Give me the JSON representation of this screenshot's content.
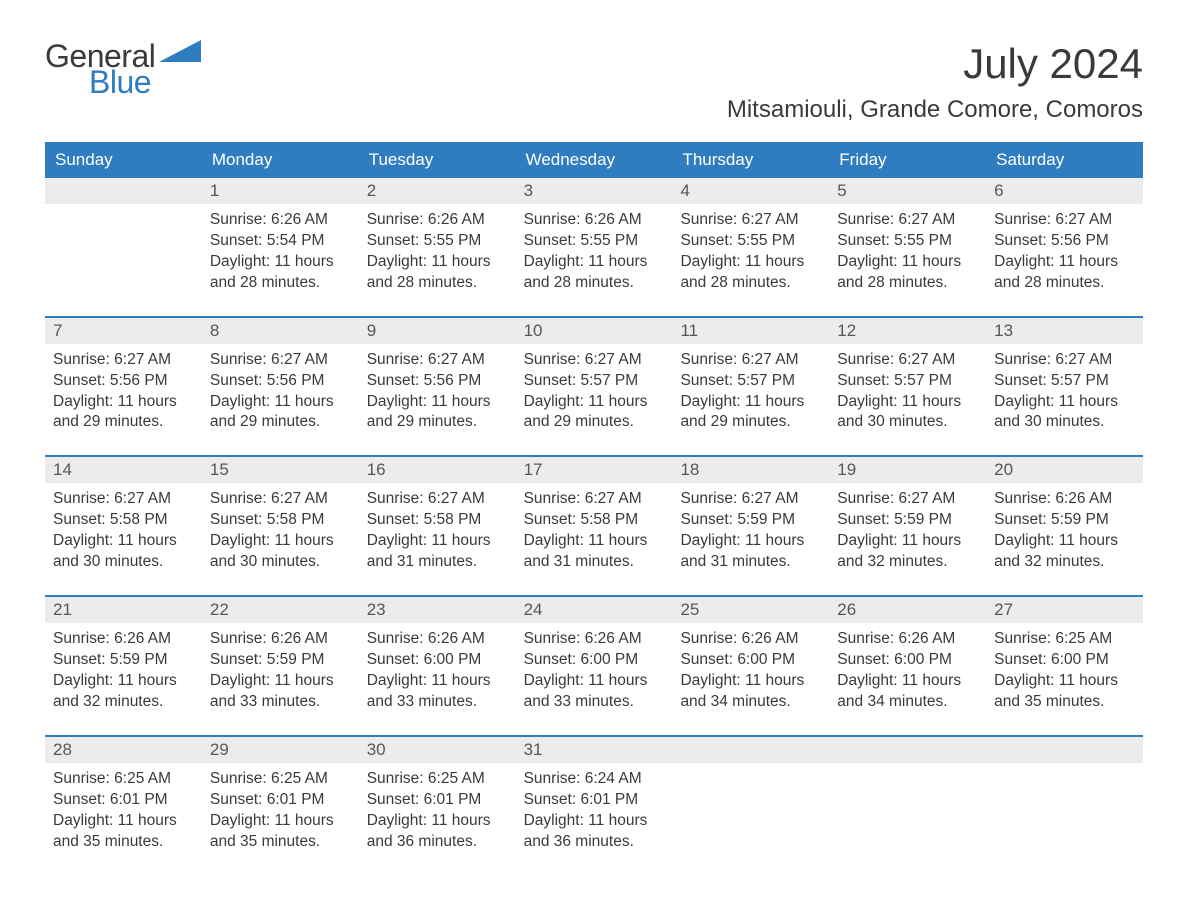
{
  "brand": {
    "part1": "General",
    "part2": "Blue",
    "accent": "#2f7dc0",
    "text_color": "#3a3a3a"
  },
  "title": "July 2024",
  "location": "Mitsamiouli, Grande Comore, Comoros",
  "colors": {
    "header_bg": "#2f7dc0",
    "header_text": "#ffffff",
    "daynum_bg": "#ececec",
    "daynum_text": "#575757",
    "body_text": "#3a3a3a",
    "week_border": "#2f7dc0",
    "page_bg": "#ffffff"
  },
  "typography": {
    "title_size_pt": 42,
    "location_size_pt": 24,
    "header_size_pt": 17,
    "body_size_pt": 15
  },
  "day_headers": [
    "Sunday",
    "Monday",
    "Tuesday",
    "Wednesday",
    "Thursday",
    "Friday",
    "Saturday"
  ],
  "weeks": [
    [
      null,
      {
        "n": "1",
        "sunrise": "6:26 AM",
        "sunset": "5:54 PM",
        "daylight": "11 hours and 28 minutes."
      },
      {
        "n": "2",
        "sunrise": "6:26 AM",
        "sunset": "5:55 PM",
        "daylight": "11 hours and 28 minutes."
      },
      {
        "n": "3",
        "sunrise": "6:26 AM",
        "sunset": "5:55 PM",
        "daylight": "11 hours and 28 minutes."
      },
      {
        "n": "4",
        "sunrise": "6:27 AM",
        "sunset": "5:55 PM",
        "daylight": "11 hours and 28 minutes."
      },
      {
        "n": "5",
        "sunrise": "6:27 AM",
        "sunset": "5:55 PM",
        "daylight": "11 hours and 28 minutes."
      },
      {
        "n": "6",
        "sunrise": "6:27 AM",
        "sunset": "5:56 PM",
        "daylight": "11 hours and 28 minutes."
      }
    ],
    [
      {
        "n": "7",
        "sunrise": "6:27 AM",
        "sunset": "5:56 PM",
        "daylight": "11 hours and 29 minutes."
      },
      {
        "n": "8",
        "sunrise": "6:27 AM",
        "sunset": "5:56 PM",
        "daylight": "11 hours and 29 minutes."
      },
      {
        "n": "9",
        "sunrise": "6:27 AM",
        "sunset": "5:56 PM",
        "daylight": "11 hours and 29 minutes."
      },
      {
        "n": "10",
        "sunrise": "6:27 AM",
        "sunset": "5:57 PM",
        "daylight": "11 hours and 29 minutes."
      },
      {
        "n": "11",
        "sunrise": "6:27 AM",
        "sunset": "5:57 PM",
        "daylight": "11 hours and 29 minutes."
      },
      {
        "n": "12",
        "sunrise": "6:27 AM",
        "sunset": "5:57 PM",
        "daylight": "11 hours and 30 minutes."
      },
      {
        "n": "13",
        "sunrise": "6:27 AM",
        "sunset": "5:57 PM",
        "daylight": "11 hours and 30 minutes."
      }
    ],
    [
      {
        "n": "14",
        "sunrise": "6:27 AM",
        "sunset": "5:58 PM",
        "daylight": "11 hours and 30 minutes."
      },
      {
        "n": "15",
        "sunrise": "6:27 AM",
        "sunset": "5:58 PM",
        "daylight": "11 hours and 30 minutes."
      },
      {
        "n": "16",
        "sunrise": "6:27 AM",
        "sunset": "5:58 PM",
        "daylight": "11 hours and 31 minutes."
      },
      {
        "n": "17",
        "sunrise": "6:27 AM",
        "sunset": "5:58 PM",
        "daylight": "11 hours and 31 minutes."
      },
      {
        "n": "18",
        "sunrise": "6:27 AM",
        "sunset": "5:59 PM",
        "daylight": "11 hours and 31 minutes."
      },
      {
        "n": "19",
        "sunrise": "6:27 AM",
        "sunset": "5:59 PM",
        "daylight": "11 hours and 32 minutes."
      },
      {
        "n": "20",
        "sunrise": "6:26 AM",
        "sunset": "5:59 PM",
        "daylight": "11 hours and 32 minutes."
      }
    ],
    [
      {
        "n": "21",
        "sunrise": "6:26 AM",
        "sunset": "5:59 PM",
        "daylight": "11 hours and 32 minutes."
      },
      {
        "n": "22",
        "sunrise": "6:26 AM",
        "sunset": "5:59 PM",
        "daylight": "11 hours and 33 minutes."
      },
      {
        "n": "23",
        "sunrise": "6:26 AM",
        "sunset": "6:00 PM",
        "daylight": "11 hours and 33 minutes."
      },
      {
        "n": "24",
        "sunrise": "6:26 AM",
        "sunset": "6:00 PM",
        "daylight": "11 hours and 33 minutes."
      },
      {
        "n": "25",
        "sunrise": "6:26 AM",
        "sunset": "6:00 PM",
        "daylight": "11 hours and 34 minutes."
      },
      {
        "n": "26",
        "sunrise": "6:26 AM",
        "sunset": "6:00 PM",
        "daylight": "11 hours and 34 minutes."
      },
      {
        "n": "27",
        "sunrise": "6:25 AM",
        "sunset": "6:00 PM",
        "daylight": "11 hours and 35 minutes."
      }
    ],
    [
      {
        "n": "28",
        "sunrise": "6:25 AM",
        "sunset": "6:01 PM",
        "daylight": "11 hours and 35 minutes."
      },
      {
        "n": "29",
        "sunrise": "6:25 AM",
        "sunset": "6:01 PM",
        "daylight": "11 hours and 35 minutes."
      },
      {
        "n": "30",
        "sunrise": "6:25 AM",
        "sunset": "6:01 PM",
        "daylight": "11 hours and 36 minutes."
      },
      {
        "n": "31",
        "sunrise": "6:24 AM",
        "sunset": "6:01 PM",
        "daylight": "11 hours and 36 minutes."
      },
      null,
      null,
      null
    ]
  ],
  "labels": {
    "sunrise": "Sunrise: ",
    "sunset": "Sunset: ",
    "daylight": "Daylight: "
  }
}
